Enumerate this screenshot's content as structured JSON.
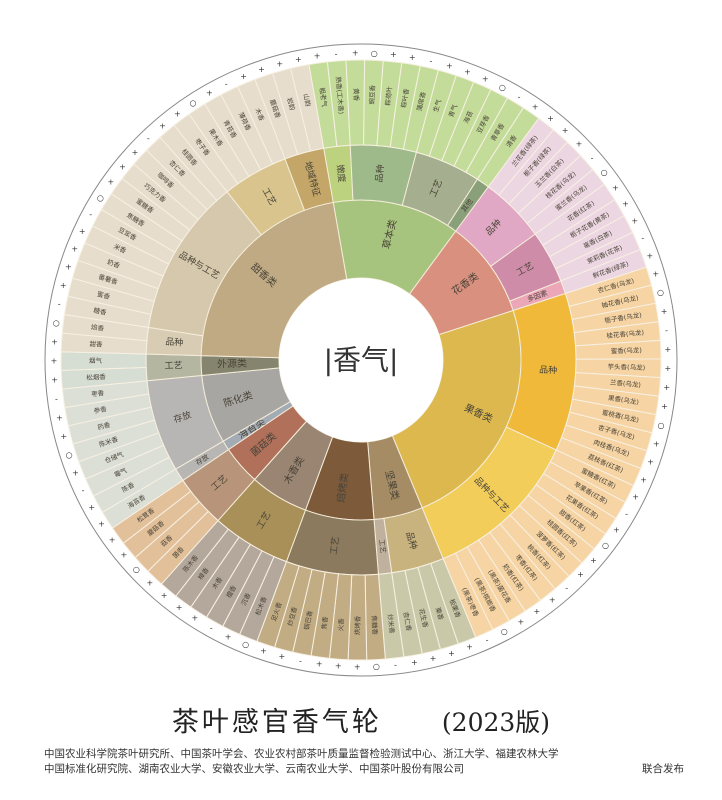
{
  "chart_data": {
    "type": "sunburst",
    "title": "茶叶感官香气轮",
    "edition": "(2023版)",
    "center_label": "|香气|",
    "categories": [
      {
        "name": "草本类",
        "color": "#a7c47e",
        "groups": [
          {
            "name": "嫩度",
            "color": "#bcd27e",
            "leaf_color": "#c4dc9a",
            "leaves": [
              "粗老气",
              "熟香(工木香)"
            ]
          },
          {
            "name": "品种",
            "color": "#9fba8a",
            "leaf_color": "#c4dc9a",
            "leaves": [
              "黄香",
              "豌豆香",
              "粽荷叶",
              "粽叶香",
              "蒲席香"
            ]
          },
          {
            "name": "工艺",
            "color": "#a5ae8e",
            "leaf_color": "#c4dc9a",
            "leaves": [
              "生气",
              "青气",
              "海苔",
              "豆芽香",
              "青草香"
            ]
          },
          {
            "name": "其他",
            "color": "#8aa07a",
            "leaf_color": "#c4dc9a",
            "leaves": [
              "清香"
            ]
          }
        ]
      },
      {
        "name": "花香类",
        "color": "#d9907e",
        "groups": [
          {
            "name": "品种",
            "color": "#e0a8c4",
            "leaf_color": "#ecd6e2",
            "leaves": [
              "兰花香(绿茶)",
              "栀子香(绿茶)",
              "玉兰香(白茶)",
              "桂花香(乌龙)",
              "蜜兰香(乌龙)"
            ]
          },
          {
            "name": "工艺",
            "color": "#cf8ca8",
            "leaf_color": "#ecd6e2",
            "leaves": [
              "花香(红茶)",
              "栀子花香(黄茶)",
              "毫香(白茶)",
              "茉莉香(花茶)"
            ]
          },
          {
            "name": "多因素",
            "color": "#eba6b8",
            "leaf_color": "#ecd6e2",
            "leaves": [
              "鲜花香(绿茶)"
            ]
          }
        ]
      },
      {
        "name": "果香类",
        "color": "#dcb84e",
        "groups": [
          {
            "name": "品种",
            "color": "#f0b93a",
            "leaf_color": "#f6d4a4",
            "leaves": [
              "杏仁香(乌龙)",
              "柚花香(乌龙)",
              "栀子香(乌龙)",
              "桂花香(乌龙)",
              "蜜香(乌龙)",
              "芋头香(乌龙)",
              "兰香(乌龙)",
              "果香(乌龙)",
              "蜜桃香(乌龙)",
              "杏子香(乌龙)",
              "肉桂香(乌龙)",
              "荔枝香(红茶)"
            ]
          },
          {
            "name": "品种与工艺",
            "color": "#f2cd5a",
            "leaf_color": "#f6d4a4",
            "leaves": [
              "蜜糖香(红茶)",
              "苹果香(红茶)",
              "花果香(红茶)",
              "甜香(红茶)",
              "桂圆香(红茶)",
              "菠萝香(红茶)",
              "桃香(红茶)",
              "枣香(红茶)",
              "奶香(红茶)",
              "(黑茶)菌花香",
              "(黑茶)槟榔香",
              "(黑茶)枣香"
            ]
          }
        ]
      },
      {
        "name": "坚果类",
        "color": "#a58c64",
        "groups": [
          {
            "name": "品种",
            "color": "#c8b37e",
            "leaf_color": "#c9c9aa",
            "leaves": [
              "板栗香",
              "栗香",
              "花生香",
              "杏仁香"
            ]
          },
          {
            "name": "工艺",
            "color": "#c0b09e",
            "leaf_color": "#c9c9aa",
            "leaves": [
              "炒米香"
            ]
          }
        ]
      },
      {
        "name": "焙烤类",
        "color": "#7d5a3a",
        "groups": [
          {
            "name": "工艺",
            "color": "#8c7a5e",
            "leaf_color": "#c2ac84",
            "leaves": [
              "焦糖香",
              "烘烤香",
              "火香",
              "焦香",
              "锅巴香",
              "炒豆香",
              "足火香"
            ]
          }
        ]
      },
      {
        "name": "木香类",
        "color": "#9a8572",
        "groups": [
          {
            "name": "工艺",
            "color": "#a89058",
            "leaf_color": "#b4a89c",
            "leaves": [
              "松木香",
              "沉香",
              "檀香",
              "木香",
              "樟香",
              "陈木香"
            ]
          }
        ]
      },
      {
        "name": "菌菇类",
        "color": "#b0705a",
        "groups": [
          {
            "name": "工艺",
            "color": "#b8957a",
            "leaf_color": "#e2c09a",
            "leaves": [
              "菌香",
              "菇香",
              "蘑菇香",
              "松茸香"
            ]
          }
        ]
      },
      {
        "name": "海苔类",
        "color": "#a3abb5",
        "groups": [
          {
            "name": "存放",
            "color": "#b8b6b4",
            "leaf_color": "#dcdfd6",
            "leaves": [
              "海苔香"
            ]
          }
        ]
      },
      {
        "name": "陈化类",
        "color": "#a8a6a3",
        "groups": [
          {
            "name": "存放",
            "color": "#b8b6b4",
            "leaf_color": "#dcdfd6",
            "leaves": [
              "陈香",
              "霉气",
              "仓储气",
              "陈米香",
              "药香",
              "参香",
              "枣香"
            ]
          }
        ]
      },
      {
        "name": "外源类",
        "color": "#85856f",
        "groups": [
          {
            "name": "工艺",
            "color": "#b4b6a2",
            "leaf_color": "#d6ddd2",
            "leaves": [
              "松烟香",
              "烟气"
            ]
          }
        ]
      },
      {
        "name": "甜香类",
        "color": "#c0aa84",
        "groups": [
          {
            "name": "品种",
            "color": "#d8cdb4",
            "leaf_color": "#e6ddcc",
            "leaves": [
              "甜香",
              "焙香"
            ]
          },
          {
            "name": "品种与工艺",
            "color": "#d6c8ac",
            "leaf_color": "#e6ddcc",
            "leaves": [
              "糖香",
              "蜜香",
              "番薯香",
              "奶香",
              "米香",
              "豆浆香",
              "焦糖香",
              "蜜糖香",
              "巧克力香",
              "咖啡香",
              "杏仁香",
              "桂圆香"
            ]
          },
          {
            "name": "工艺",
            "color": "#d8c48c",
            "leaf_color": "#e6ddcc",
            "leaves": [
              "枣子香",
              "果木香",
              "青苔香",
              "薄荷香",
              "木香"
            ]
          },
          {
            "name": "地域特征",
            "color": "#c4a668",
            "leaf_color": "#e6ddcc",
            "leaves": [
              "蘑菇香",
              "岩韵",
              "山韵"
            ]
          }
        ]
      }
    ],
    "marks": [
      "+",
      "-",
      "○"
    ]
  },
  "footer": {
    "title": "茶叶感官香气轮",
    "year": "(2023版)",
    "publishers_line1": "中国农业科学院茶叶研究所、中国茶叶学会、农业农村部茶叶质量监督检验测试中心、浙江大学、福建农林大学",
    "publishers_line2": "中国标准化研究院、湖南农业大学、安徽农业大学、云南农业大学、中国茶叶股份有限公司",
    "joint_release": "联合发布"
  }
}
